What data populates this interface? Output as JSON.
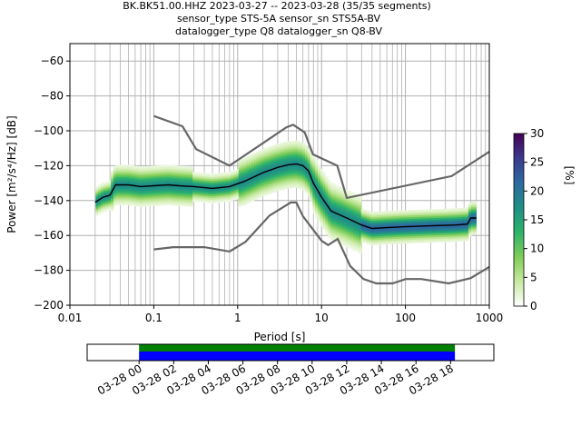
{
  "header": {
    "title_line1": "BK.BK51.00.HHZ   2023-03-27 -- 2023-03-28  (35/35 segments)",
    "title_line2": "sensor_type STS-5A sensor_sn STS5A-BV",
    "title_line3": "datalogger_type Q8 datalogger_sn Q8-BV"
  },
  "chart_data": {
    "type": "heatmap",
    "xlabel": "Period [s]",
    "ylabel": "Power [m²/s⁴/Hz] [dB]",
    "xscale": "log",
    "xlim": [
      0.01,
      1000
    ],
    "ylim": [
      -200,
      -50
    ],
    "x_ticks": [
      {
        "v": 0.01,
        "label": "0.01"
      },
      {
        "v": 0.1,
        "label": "0.1"
      },
      {
        "v": 1,
        "label": "1"
      },
      {
        "v": 10,
        "label": "10"
      },
      {
        "v": 100,
        "label": "100"
      },
      {
        "v": 1000,
        "label": "1000"
      }
    ],
    "y_ticks": [
      {
        "v": -60,
        "label": "−60"
      },
      {
        "v": -80,
        "label": "−80"
      },
      {
        "v": -100,
        "label": "−100"
      },
      {
        "v": -120,
        "label": "−120"
      },
      {
        "v": -140,
        "label": "−140"
      },
      {
        "v": -160,
        "label": "−160"
      },
      {
        "v": -180,
        "label": "−180"
      },
      {
        "v": -200,
        "label": "−200"
      }
    ],
    "grid": true,
    "colorbar": {
      "label": "[%]",
      "min": 0,
      "max": 30,
      "ticks": [
        {
          "v": 0,
          "label": "0"
        },
        {
          "v": 5,
          "label": "5"
        },
        {
          "v": 10,
          "label": "10"
        },
        {
          "v": 15,
          "label": "15"
        },
        {
          "v": 20,
          "label": "20"
        },
        {
          "v": 25,
          "label": "25"
        },
        {
          "v": 30,
          "label": "30"
        }
      ],
      "colors": [
        "#ffffff",
        "#c7e9a0",
        "#7fcd57",
        "#2db36b",
        "#1f8f86",
        "#2d6aa0",
        "#3b3b8f",
        "#440154"
      ]
    },
    "nhnm": [
      [
        0.1,
        -91.5
      ],
      [
        0.22,
        -97.4
      ],
      [
        0.32,
        -110.5
      ],
      [
        0.8,
        -120
      ],
      [
        3.8,
        -98
      ],
      [
        4.6,
        -96.5
      ],
      [
        6.3,
        -101
      ],
      [
        7.9,
        -113.5
      ],
      [
        15.4,
        -120
      ],
      [
        20,
        -138.5
      ],
      [
        354.8,
        -126
      ],
      [
        1000,
        -112
      ]
    ],
    "nlnm": [
      [
        0.1,
        -168
      ],
      [
        0.17,
        -166.7
      ],
      [
        0.4,
        -166.7
      ],
      [
        0.8,
        -169.2
      ],
      [
        1.24,
        -163.7
      ],
      [
        2.4,
        -148.6
      ],
      [
        4.3,
        -141.1
      ],
      [
        5,
        -141.1
      ],
      [
        6,
        -149
      ],
      [
        10,
        -163
      ],
      [
        12,
        -165.5
      ],
      [
        15.6,
        -162
      ],
      [
        21.9,
        -177.5
      ],
      [
        31.6,
        -185
      ],
      [
        45,
        -187.5
      ],
      [
        70,
        -187.5
      ],
      [
        101,
        -185
      ],
      [
        154,
        -185
      ],
      [
        328,
        -187.5
      ],
      [
        600,
        -184.5
      ],
      [
        1000,
        -178
      ]
    ],
    "mean_series": [
      [
        0.02,
        -141
      ],
      [
        0.025,
        -138
      ],
      [
        0.03,
        -137
      ],
      [
        0.035,
        -131
      ],
      [
        0.05,
        -131
      ],
      [
        0.07,
        -132
      ],
      [
        0.1,
        -131.5
      ],
      [
        0.15,
        -131
      ],
      [
        0.2,
        -131.5
      ],
      [
        0.3,
        -132
      ],
      [
        0.5,
        -133
      ],
      [
        0.8,
        -132
      ],
      [
        1.2,
        -129
      ],
      [
        2,
        -124
      ],
      [
        3,
        -121
      ],
      [
        4,
        -119.5
      ],
      [
        5,
        -119
      ],
      [
        6,
        -120
      ],
      [
        7,
        -123
      ],
      [
        8,
        -130
      ],
      [
        10,
        -138
      ],
      [
        13,
        -146
      ],
      [
        20,
        -150
      ],
      [
        30,
        -154
      ],
      [
        40,
        -156
      ],
      [
        60,
        -155.5
      ],
      [
        100,
        -155
      ],
      [
        200,
        -154.5
      ],
      [
        400,
        -154
      ],
      [
        550,
        -153.5
      ],
      [
        600,
        -150
      ],
      [
        700,
        -150
      ]
    ],
    "time_axis": {
      "tick_labels": [
        "03-28 00",
        "03-28 02",
        "03-28 04",
        "03-28 06",
        "03-28 08",
        "03-28 10",
        "03-28 12",
        "03-28 14",
        "03-28 16",
        "03-28 18"
      ],
      "range_hours": [
        -3,
        20.5
      ],
      "data_start_h": 0,
      "data_end_h": 18.25,
      "colors": {
        "gaps": "#008000",
        "data": "#0000ff"
      }
    }
  }
}
